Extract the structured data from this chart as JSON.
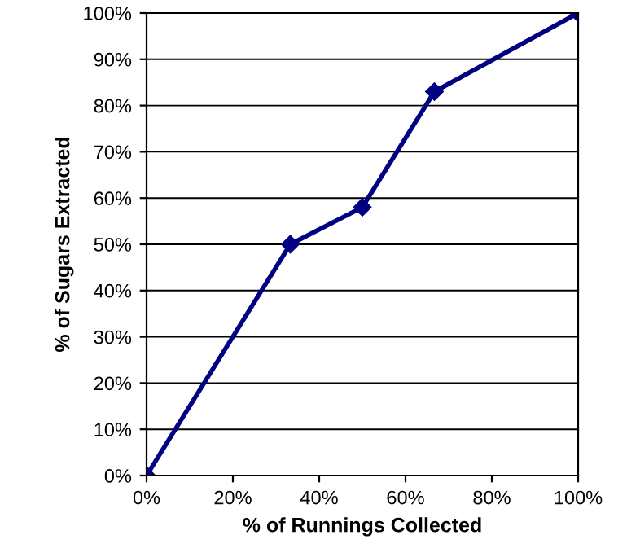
{
  "chart_data": {
    "type": "line",
    "xlabel": "% of Runnings Collected",
    "ylabel": "% of Sugars Extracted",
    "x": [
      0,
      33.3,
      50,
      66.7,
      100
    ],
    "series": [
      {
        "color": "#000080",
        "values": [
          0,
          50,
          58,
          83,
          100
        ]
      }
    ],
    "xlim": [
      0,
      100
    ],
    "ylim": [
      0,
      100
    ],
    "xticks": [
      {
        "value": 0,
        "label": "0%"
      },
      {
        "value": 20,
        "label": "20%"
      },
      {
        "value": 40,
        "label": "40%"
      },
      {
        "value": 60,
        "label": "60%"
      },
      {
        "value": 80,
        "label": "80%"
      },
      {
        "value": 100,
        "label": "100%"
      }
    ],
    "yticks": [
      {
        "value": 0,
        "label": "0%"
      },
      {
        "value": 10,
        "label": "10%"
      },
      {
        "value": 20,
        "label": "20%"
      },
      {
        "value": 30,
        "label": "30%"
      },
      {
        "value": 40,
        "label": "40%"
      },
      {
        "value": 50,
        "label": "50%"
      },
      {
        "value": 60,
        "label": "60%"
      },
      {
        "value": 70,
        "label": "70%"
      },
      {
        "value": 80,
        "label": "80%"
      },
      {
        "value": 90,
        "label": "90%"
      },
      {
        "value": 100,
        "label": "100%"
      }
    ],
    "grid": "y",
    "marker": "diamond",
    "line_style": "solid",
    "legend": false
  }
}
